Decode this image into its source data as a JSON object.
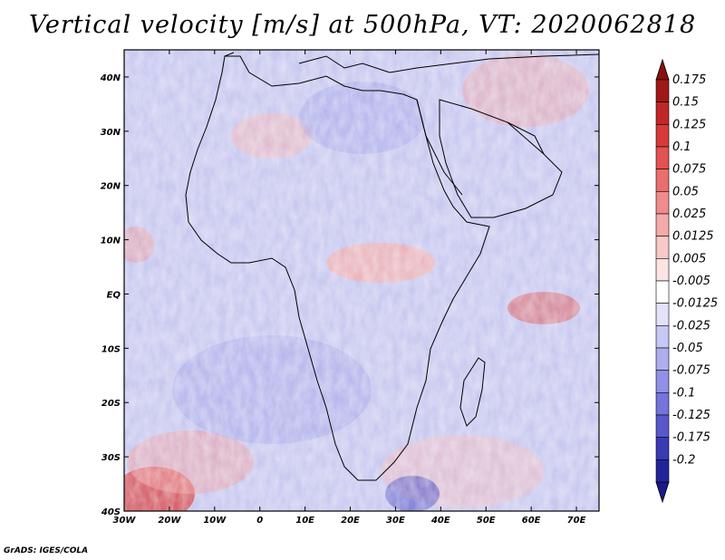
{
  "title": "Vertical velocity [m/s] at 500hPa, VT: 2020062818",
  "credit": "GrADS: IGES/COLA",
  "map": {
    "lon_range": [
      -30,
      75
    ],
    "lat_range": [
      -40,
      45
    ],
    "lat_ticks": [
      {
        "value": 40,
        "label": "40N"
      },
      {
        "value": 30,
        "label": "30N"
      },
      {
        "value": 20,
        "label": "20N"
      },
      {
        "value": 10,
        "label": "10N"
      },
      {
        "value": 0,
        "label": "EQ"
      },
      {
        "value": -10,
        "label": "10S"
      },
      {
        "value": -20,
        "label": "20S"
      },
      {
        "value": -30,
        "label": "30S"
      },
      {
        "value": -40,
        "label": "40S"
      }
    ],
    "lon_ticks": [
      {
        "value": -30,
        "label": "30W"
      },
      {
        "value": -20,
        "label": "20W"
      },
      {
        "value": -10,
        "label": "10W"
      },
      {
        "value": 0,
        "label": "0"
      },
      {
        "value": 10,
        "label": "10E"
      },
      {
        "value": 20,
        "label": "20E"
      },
      {
        "value": 30,
        "label": "30E"
      },
      {
        "value": 40,
        "label": "40E"
      },
      {
        "value": 50,
        "label": "50E"
      },
      {
        "value": 60,
        "label": "60E"
      },
      {
        "value": 70,
        "label": "70E"
      }
    ]
  },
  "colorbar": {
    "levels": [
      {
        "label": "0.175",
        "color": "#a01818"
      },
      {
        "label": "0.15",
        "color": "#c02828"
      },
      {
        "label": "0.125",
        "color": "#d63a3a"
      },
      {
        "label": "0.1",
        "color": "#e25252"
      },
      {
        "label": "0.075",
        "color": "#ea6e6e"
      },
      {
        "label": "0.05",
        "color": "#f08c8c"
      },
      {
        "label": "0.025",
        "color": "#f5aaaa"
      },
      {
        "label": "0.0125",
        "color": "#f9c8c8"
      },
      {
        "label": "0.005",
        "color": "#fce4e4"
      },
      {
        "label": "-0.005",
        "color": "#ffffff"
      },
      {
        "label": "-0.0125",
        "color": "#e2e2fa"
      },
      {
        "label": "-0.025",
        "color": "#c8c8f4"
      },
      {
        "label": "-0.05",
        "color": "#aeaeee"
      },
      {
        "label": "-0.075",
        "color": "#9090e6"
      },
      {
        "label": "-0.1",
        "color": "#7474dc"
      },
      {
        "label": "-0.125",
        "color": "#5858cc"
      },
      {
        "label": "-0.175",
        "color": "#3a3ab4"
      },
      {
        "label": "-0.2",
        "color": "#24249a"
      }
    ],
    "top_arrow_color": "#8a1010",
    "bottom_arrow_color": "#1a1a8a"
  },
  "colors": {
    "land_outline": "#000000",
    "background_field": "#c9c9f0"
  }
}
